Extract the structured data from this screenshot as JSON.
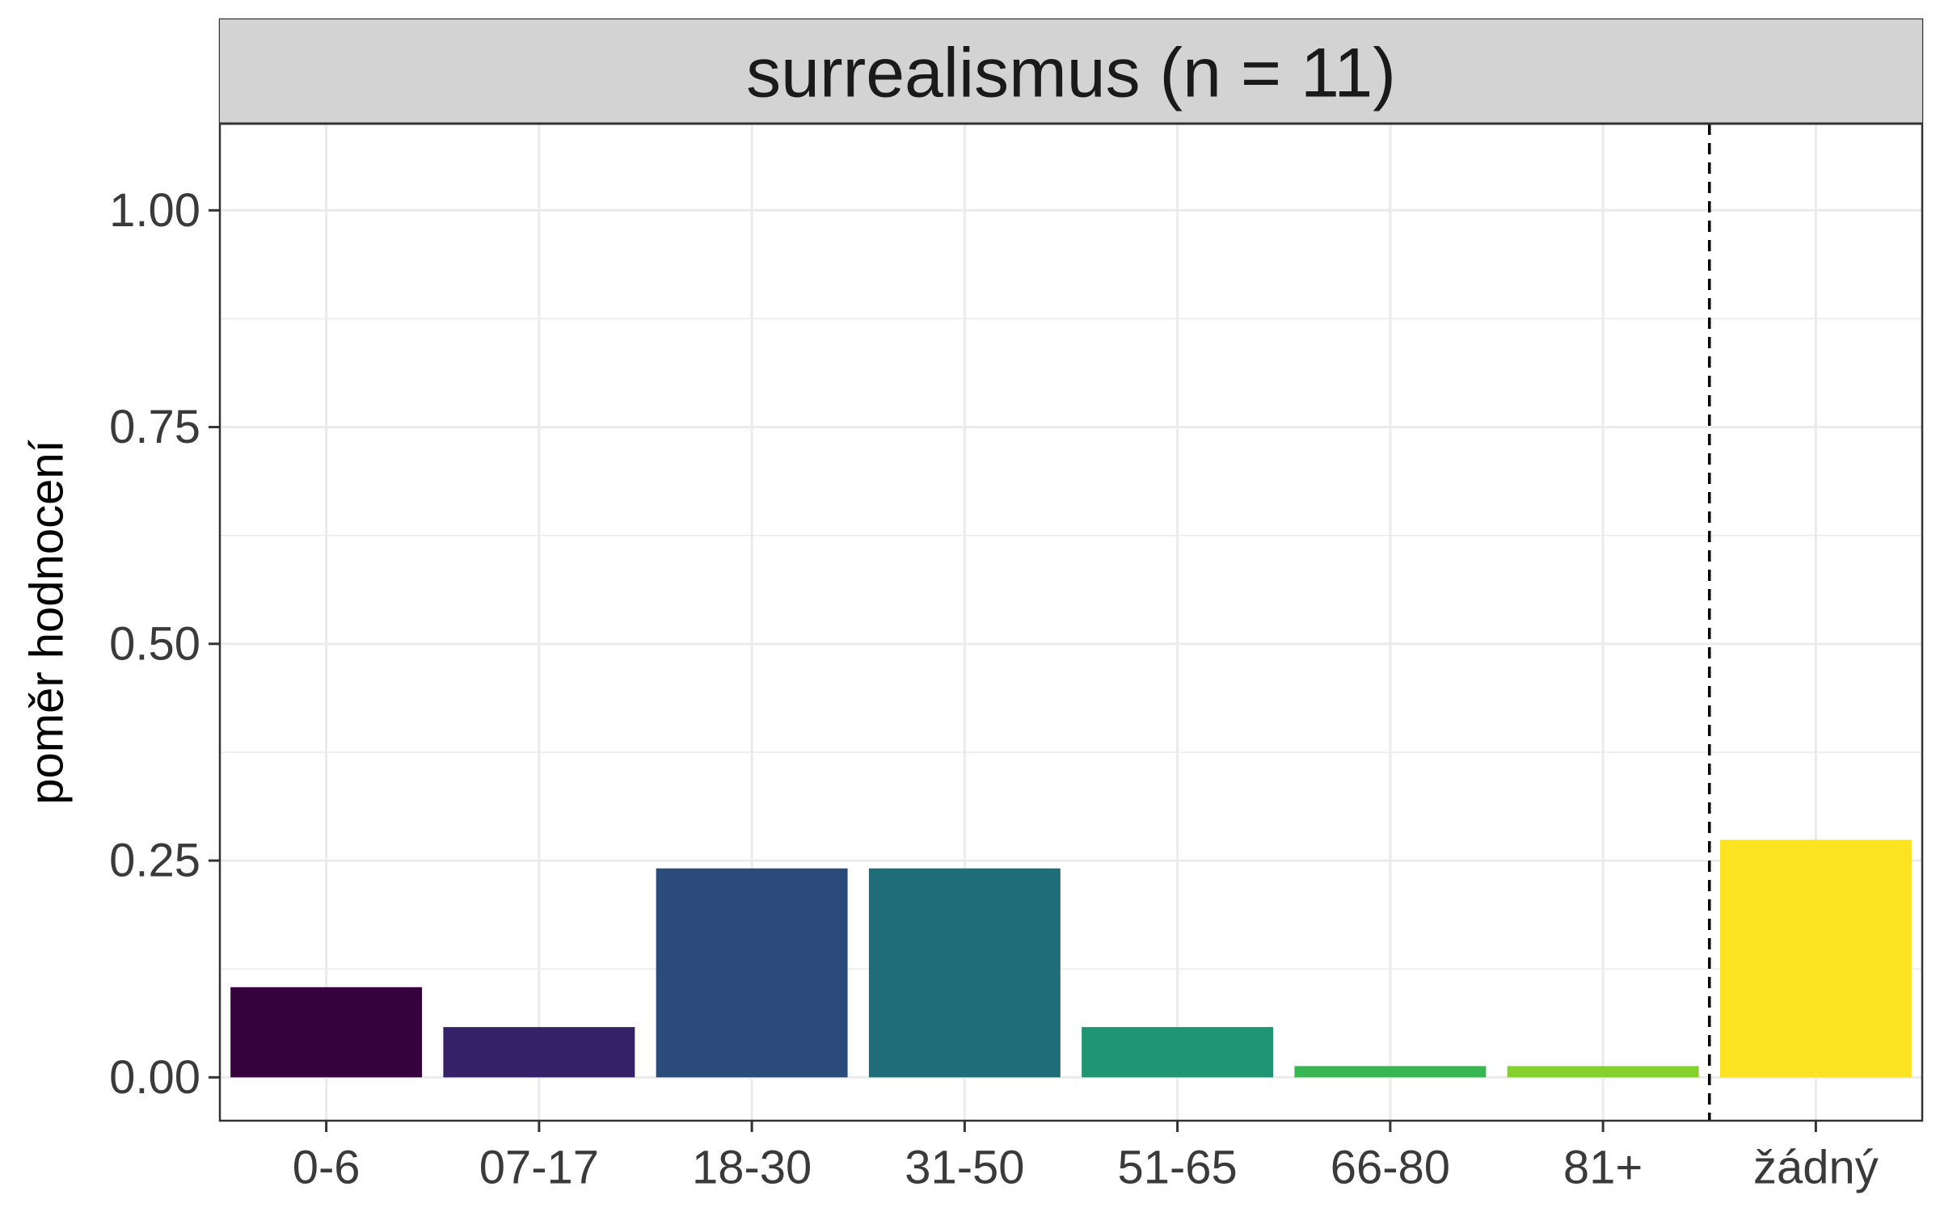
{
  "chart_data": {
    "type": "bar",
    "title": "surrealismus (n = 11)",
    "xlabel": "",
    "ylabel": "poměr hodnocení",
    "categories": [
      "0-6",
      "07-17",
      "18-30",
      "31-50",
      "51-65",
      "66-80",
      "81+",
      "žádný"
    ],
    "values": [
      0.104,
      0.058,
      0.241,
      0.241,
      0.058,
      0.013,
      0.013,
      0.274
    ],
    "colors": [
      "#35023e",
      "#352167",
      "#2b4b7b",
      "#216e7b",
      "#1f9574",
      "#3ab554",
      "#84d12e",
      "#fbe321"
    ],
    "ylim": [
      -0.05,
      1.1
    ],
    "yticks": [
      0.0,
      0.25,
      0.5,
      0.75,
      1.0
    ],
    "ytick_labels": [
      "0.00",
      "0.25",
      "0.50",
      "0.75",
      "1.00"
    ],
    "reference_line": {
      "style": "dashed",
      "between": [
        "81+",
        "žádný"
      ],
      "color": "#000000"
    },
    "grid": true,
    "legend": "none",
    "strip_color": "#d3d3d3",
    "panel_border_color": "#333333",
    "grid_color": "#ebebeb"
  }
}
